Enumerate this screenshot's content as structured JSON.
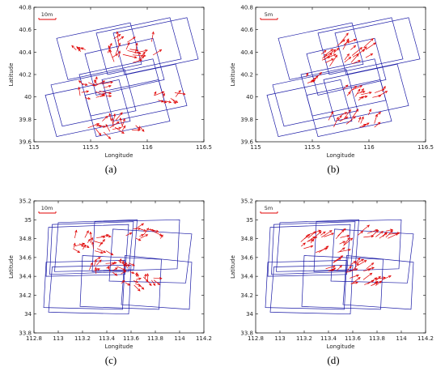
{
  "chart_data": [
    {
      "type": "vector-field",
      "caption": "(a)",
      "xlabel": "Longitude",
      "ylabel": "Latitude",
      "xlim": [
        115,
        116.5
      ],
      "ylim": [
        39.5,
        40.8
      ],
      "xticks": [
        "115",
        "115.5",
        "116",
        "116.5"
      ],
      "yticks": [
        "39.6",
        "39.8",
        "40",
        "40.2",
        "40.4",
        "40.6",
        "40.8"
      ],
      "scale_label": "10m",
      "polygon_color": "#1a1aa6",
      "vector_color": "#e00000",
      "footprints": [
        [
          [
            115.2,
            40.5
          ],
          [
            115.85,
            40.65
          ],
          [
            115.95,
            40.25
          ],
          [
            115.3,
            40.1
          ]
        ],
        [
          [
            115.55,
            40.55
          ],
          [
            116.2,
            40.7
          ],
          [
            116.3,
            40.3
          ],
          [
            115.65,
            40.15
          ]
        ],
        [
          [
            115.7,
            40.55
          ],
          [
            116.35,
            40.7
          ],
          [
            116.45,
            40.3
          ],
          [
            115.8,
            40.15
          ]
        ],
        [
          [
            115.45,
            40.35
          ],
          [
            116.05,
            40.5
          ],
          [
            116.15,
            40.1
          ],
          [
            115.55,
            39.95
          ]
        ],
        [
          [
            115.15,
            40.05
          ],
          [
            115.8,
            40.2
          ],
          [
            115.9,
            39.8
          ],
          [
            115.25,
            39.65
          ]
        ],
        [
          [
            115.4,
            40.15
          ],
          [
            116.05,
            40.3
          ],
          [
            116.15,
            39.9
          ],
          [
            115.5,
            39.75
          ]
        ],
        [
          [
            115.6,
            40.1
          ],
          [
            116.25,
            40.25
          ],
          [
            116.35,
            39.85
          ],
          [
            115.7,
            39.7
          ]
        ],
        [
          [
            115.1,
            39.95
          ],
          [
            115.75,
            40.1
          ],
          [
            115.85,
            39.7
          ],
          [
            115.2,
            39.55
          ]
        ],
        [
          [
            115.45,
            39.95
          ],
          [
            116.1,
            40.1
          ],
          [
            116.2,
            39.7
          ],
          [
            115.55,
            39.55
          ]
        ]
      ],
      "vector_clusters": [
        {
          "center": [
            115.85,
            40.38
          ],
          "count": 22,
          "spread": [
            0.22,
            0.12
          ],
          "mag": 0.11,
          "dir": 45,
          "jitter": 0.8
        },
        {
          "center": [
            115.55,
            40.0
          ],
          "count": 16,
          "spread": [
            0.15,
            0.08
          ],
          "mag": 0.09,
          "dir": 60,
          "jitter": 1.0
        },
        {
          "center": [
            115.7,
            39.65
          ],
          "count": 20,
          "spread": [
            0.25,
            0.06
          ],
          "mag": 0.09,
          "dir": 30,
          "jitter": 1.0
        },
        {
          "center": [
            116.15,
            39.92
          ],
          "count": 10,
          "spread": [
            0.12,
            0.06
          ],
          "mag": 0.08,
          "dir": 10,
          "jitter": 0.9
        },
        {
          "center": [
            115.4,
            40.38
          ],
          "count": 5,
          "spread": [
            0.06,
            0.04
          ],
          "mag": 0.06,
          "dir": 170,
          "jitter": 0.6
        }
      ]
    },
    {
      "type": "vector-field",
      "caption": "(b)",
      "xlabel": "Longitude",
      "ylabel": "Latitude",
      "xlim": [
        115,
        116.5
      ],
      "ylim": [
        39.5,
        40.8
      ],
      "xticks": [
        "115",
        "115.5",
        "116",
        "116.5"
      ],
      "yticks": [
        "39.6",
        "39.8",
        "40",
        "40.2",
        "40.4",
        "40.6",
        "40.8"
      ],
      "scale_label": "5m",
      "polygon_color": "#1a1aa6",
      "vector_color": "#e00000",
      "footprints": [
        [
          [
            115.2,
            40.5
          ],
          [
            115.85,
            40.65
          ],
          [
            115.95,
            40.25
          ],
          [
            115.3,
            40.1
          ]
        ],
        [
          [
            115.55,
            40.55
          ],
          [
            116.2,
            40.7
          ],
          [
            116.3,
            40.3
          ],
          [
            115.65,
            40.15
          ]
        ],
        [
          [
            115.7,
            40.55
          ],
          [
            116.35,
            40.7
          ],
          [
            116.45,
            40.3
          ],
          [
            115.8,
            40.15
          ]
        ],
        [
          [
            115.45,
            40.35
          ],
          [
            116.05,
            40.5
          ],
          [
            116.15,
            40.1
          ],
          [
            115.55,
            39.95
          ]
        ],
        [
          [
            115.15,
            40.05
          ],
          [
            115.8,
            40.2
          ],
          [
            115.9,
            39.8
          ],
          [
            115.25,
            39.65
          ]
        ],
        [
          [
            115.4,
            40.15
          ],
          [
            116.05,
            40.3
          ],
          [
            116.15,
            39.9
          ],
          [
            115.5,
            39.75
          ]
        ],
        [
          [
            115.6,
            40.1
          ],
          [
            116.25,
            40.25
          ],
          [
            116.35,
            39.85
          ],
          [
            115.7,
            39.7
          ]
        ],
        [
          [
            115.1,
            39.95
          ],
          [
            115.75,
            40.1
          ],
          [
            115.85,
            39.7
          ],
          [
            115.2,
            39.55
          ]
        ],
        [
          [
            115.45,
            39.95
          ],
          [
            116.1,
            40.1
          ],
          [
            116.2,
            39.7
          ],
          [
            115.55,
            39.55
          ]
        ]
      ],
      "vector_clusters": [
        {
          "center": [
            115.8,
            40.35
          ],
          "count": 26,
          "spread": [
            0.22,
            0.12
          ],
          "mag": 0.11,
          "dir": 45,
          "jitter": 0.25
        },
        {
          "center": [
            115.95,
            39.95
          ],
          "count": 14,
          "spread": [
            0.18,
            0.06
          ],
          "mag": 0.09,
          "dir": 40,
          "jitter": 0.3
        },
        {
          "center": [
            115.85,
            39.7
          ],
          "count": 16,
          "spread": [
            0.22,
            0.06
          ],
          "mag": 0.1,
          "dir": 55,
          "jitter": 0.3
        },
        {
          "center": [
            115.5,
            40.1
          ],
          "count": 6,
          "spread": [
            0.06,
            0.05
          ],
          "mag": 0.07,
          "dir": 40,
          "jitter": 0.3
        }
      ]
    },
    {
      "type": "vector-field",
      "caption": "(c)",
      "xlabel": "Longitude",
      "ylabel": "Latitude",
      "xlim": [
        112.8,
        114.2
      ],
      "ylim": [
        33.8,
        35.2
      ],
      "xticks": [
        "112.8",
        "113",
        "113.2",
        "113.4",
        "113.6",
        "113.8",
        "114",
        "114.2"
      ],
      "yticks": [
        "33.8",
        "34",
        "34.2",
        "34.4",
        "34.6",
        "34.8",
        "35",
        "35.2"
      ],
      "scale_label": "10m",
      "polygon_color": "#1a1aa6",
      "vector_color": "#e00000",
      "footprints": [
        [
          [
            112.92,
            34.92
          ],
          [
            113.58,
            34.95
          ],
          [
            113.55,
            34.42
          ],
          [
            112.9,
            34.4
          ]
        ],
        [
          [
            112.95,
            34.95
          ],
          [
            113.62,
            34.98
          ],
          [
            113.58,
            34.45
          ],
          [
            112.93,
            34.42
          ]
        ],
        [
          [
            113.0,
            34.97
          ],
          [
            113.65,
            35.0
          ],
          [
            113.62,
            34.47
          ],
          [
            112.97,
            34.45
          ]
        ],
        [
          [
            113.3,
            34.98
          ],
          [
            114.0,
            35.0
          ],
          [
            113.98,
            34.48
          ],
          [
            113.28,
            34.45
          ]
        ],
        [
          [
            113.45,
            34.9
          ],
          [
            114.1,
            34.85
          ],
          [
            114.05,
            34.33
          ],
          [
            113.42,
            34.35
          ]
        ],
        [
          [
            112.95,
            34.5
          ],
          [
            113.6,
            34.52
          ],
          [
            113.58,
            34.0
          ],
          [
            112.92,
            34.02
          ]
        ],
        [
          [
            112.9,
            34.55
          ],
          [
            113.55,
            34.57
          ],
          [
            113.53,
            34.05
          ],
          [
            112.88,
            34.07
          ]
        ],
        [
          [
            113.2,
            34.62
          ],
          [
            113.85,
            34.58
          ],
          [
            113.83,
            34.05
          ],
          [
            113.18,
            34.08
          ]
        ],
        [
          [
            113.55,
            34.62
          ],
          [
            114.1,
            34.55
          ],
          [
            114.08,
            34.05
          ],
          [
            113.52,
            34.1
          ]
        ]
      ],
      "vector_clusters": [
        {
          "center": [
            113.25,
            34.75
          ],
          "count": 20,
          "spread": [
            0.15,
            0.08
          ],
          "mag": 0.08,
          "dir": 30,
          "jitter": 0.9
        },
        {
          "center": [
            113.7,
            34.85
          ],
          "count": 12,
          "spread": [
            0.15,
            0.06
          ],
          "mag": 0.08,
          "dir": 20,
          "jitter": 0.7
        },
        {
          "center": [
            113.4,
            34.5
          ],
          "count": 20,
          "spread": [
            0.2,
            0.08
          ],
          "mag": 0.08,
          "dir": 45,
          "jitter": 1.0
        },
        {
          "center": [
            113.65,
            34.35
          ],
          "count": 16,
          "spread": [
            0.18,
            0.05
          ],
          "mag": 0.07,
          "dir": 15,
          "jitter": 0.9
        }
      ]
    },
    {
      "type": "vector-field",
      "caption": "(d)",
      "xlabel": "Longitude",
      "ylabel": "Latitude",
      "xlim": [
        112.8,
        114.2
      ],
      "ylim": [
        33.8,
        35.2
      ],
      "xticks": [
        "112.8",
        "113",
        "113.2",
        "113.4",
        "113.6",
        "113.8",
        "114",
        "114.2"
      ],
      "yticks": [
        "33.8",
        "34",
        "34.2",
        "34.4",
        "34.6",
        "34.8",
        "35",
        "35.2"
      ],
      "scale_label": "5m",
      "polygon_color": "#1a1aa6",
      "vector_color": "#e00000",
      "footprints": [
        [
          [
            112.92,
            34.92
          ],
          [
            113.58,
            34.95
          ],
          [
            113.55,
            34.42
          ],
          [
            112.9,
            34.4
          ]
        ],
        [
          [
            112.95,
            34.95
          ],
          [
            113.62,
            34.98
          ],
          [
            113.58,
            34.45
          ],
          [
            112.93,
            34.42
          ]
        ],
        [
          [
            113.0,
            34.97
          ],
          [
            113.65,
            35.0
          ],
          [
            113.62,
            34.47
          ],
          [
            112.97,
            34.45
          ]
        ],
        [
          [
            113.3,
            34.98
          ],
          [
            114.0,
            35.0
          ],
          [
            113.98,
            34.48
          ],
          [
            113.28,
            34.45
          ]
        ],
        [
          [
            113.45,
            34.9
          ],
          [
            114.1,
            34.85
          ],
          [
            114.05,
            34.33
          ],
          [
            113.42,
            34.35
          ]
        ],
        [
          [
            112.95,
            34.5
          ],
          [
            113.6,
            34.52
          ],
          [
            113.58,
            34.0
          ],
          [
            112.92,
            34.02
          ]
        ],
        [
          [
            112.9,
            34.55
          ],
          [
            113.55,
            34.57
          ],
          [
            113.53,
            34.05
          ],
          [
            112.88,
            34.07
          ]
        ],
        [
          [
            113.2,
            34.62
          ],
          [
            113.85,
            34.58
          ],
          [
            113.83,
            34.05
          ],
          [
            113.18,
            34.08
          ]
        ],
        [
          [
            113.55,
            34.62
          ],
          [
            114.1,
            34.55
          ],
          [
            114.08,
            34.05
          ],
          [
            113.52,
            34.1
          ]
        ]
      ],
      "vector_clusters": [
        {
          "center": [
            113.35,
            34.75
          ],
          "count": 24,
          "spread": [
            0.18,
            0.1
          ],
          "mag": 0.1,
          "dir": 35,
          "jitter": 0.25
        },
        {
          "center": [
            113.75,
            34.85
          ],
          "count": 12,
          "spread": [
            0.15,
            0.06
          ],
          "mag": 0.09,
          "dir": 30,
          "jitter": 0.25
        },
        {
          "center": [
            113.55,
            34.5
          ],
          "count": 16,
          "spread": [
            0.18,
            0.06
          ],
          "mag": 0.1,
          "dir": 35,
          "jitter": 0.25
        },
        {
          "center": [
            113.7,
            34.35
          ],
          "count": 12,
          "spread": [
            0.15,
            0.05
          ],
          "mag": 0.09,
          "dir": 30,
          "jitter": 0.25
        }
      ]
    }
  ]
}
